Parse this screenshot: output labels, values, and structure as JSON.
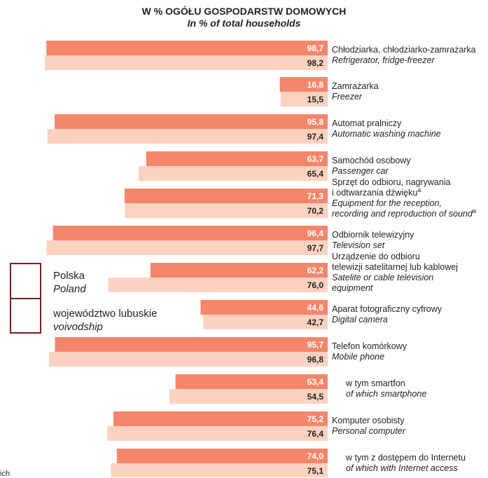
{
  "title": {
    "pl": "W % OGÓŁU GOSPODARSTW DOMOWYCH",
    "en": "In % of total households"
  },
  "legend": [
    {
      "pl": "Polska",
      "en": "Poland",
      "color": "#f4866a"
    },
    {
      "pl": "województwo lubuskie",
      "en": "voivodship",
      "color": "#fbd2c0"
    }
  ],
  "colors": {
    "poland": "#f4866a",
    "voivodship": "#fbd2c0",
    "poland_text": "#ffffff",
    "voivodship_text": "#231f20",
    "legend_border": "#7a1c1c"
  },
  "footnote": "ich",
  "chart_data": {
    "type": "bar",
    "orientation": "horizontal",
    "xlim": [
      0,
      100
    ],
    "series": [
      {
        "name": "Polska / Poland",
        "values": [
          98.7,
          16.8,
          95.8,
          63.7,
          71.3,
          96.4,
          62.2,
          44.6,
          95.7,
          53.4,
          75.2,
          74.0
        ]
      },
      {
        "name": "województwo lubuskie / voivodship",
        "values": [
          98.2,
          15.5,
          97.4,
          65.4,
          70.2,
          97.7,
          76.0,
          42.7,
          96.8,
          54.5,
          76.4,
          75.1
        ]
      }
    ],
    "value_labels": {
      "poland": [
        "98,7",
        "16,8",
        "95,8",
        "63,7",
        "71,3",
        "96,4",
        "62,2",
        "44,6",
        "95,7",
        "53,4",
        "75,2",
        "74,0"
      ],
      "voivodship": [
        "98,2",
        "15,5",
        "97,4",
        "65,4",
        "70,2",
        "97,7",
        "76,0",
        "42,7",
        "96,8",
        "54,5",
        "76,4",
        "75,1"
      ]
    },
    "categories": [
      {
        "lines": [
          {
            "t": "Chłodziarka, chłodziarko-zamrażarka",
            "it": false
          },
          {
            "t": "Refrigerator, fridge-freezer",
            "it": true
          }
        ]
      },
      {
        "lines": [
          {
            "t": "Zamrażarka",
            "it": false
          },
          {
            "t": "Freezer",
            "it": true
          }
        ]
      },
      {
        "lines": [
          {
            "t": "Automat pralniczy",
            "it": false
          },
          {
            "t": "Automatic washing machine",
            "it": true
          }
        ]
      },
      {
        "lines": [
          {
            "t": "Samochód osobowy",
            "it": false
          },
          {
            "t": "Passenger car",
            "it": true
          }
        ]
      },
      {
        "lines": [
          {
            "t": "Sprzęt do odbioru, nagrywania",
            "it": false
          },
          {
            "t": "i odtwarzania dźwięku",
            "it": false,
            "sup": "a"
          },
          {
            "t": "Equipment for the reception,",
            "it": true
          },
          {
            "t": "recording and reproduction of sound",
            "it": true,
            "sup": "a"
          }
        ]
      },
      {
        "lines": [
          {
            "t": "Odbiornik telewizyjny",
            "it": false
          },
          {
            "t": "Television set",
            "it": true
          }
        ]
      },
      {
        "lines": [
          {
            "t": "Urządzenie do odbioru",
            "it": false
          },
          {
            "t": "telewizji satelitarnej lub kablowej",
            "it": false
          },
          {
            "t": "Satelite or cable television",
            "it": true
          },
          {
            "t": "equipment",
            "it": true
          }
        ]
      },
      {
        "lines": [
          {
            "t": "Aparat fotograficzny cyfrowy",
            "it": false
          },
          {
            "t": "Digital camera",
            "it": true
          }
        ]
      },
      {
        "lines": [
          {
            "t": "Telefon komórkowy",
            "it": false
          },
          {
            "t": "Mobile phone",
            "it": true
          }
        ]
      },
      {
        "lines": [
          {
            "t": "w tym smartfon",
            "it": false
          },
          {
            "t": "of which smartphone",
            "it": true
          }
        ],
        "indent": true
      },
      {
        "lines": [
          {
            "t": "Komputer osobisty",
            "it": false
          },
          {
            "t": "Personal computer",
            "it": true
          }
        ]
      },
      {
        "lines": [
          {
            "t": "w tym z dostępem do Internetu",
            "it": false
          },
          {
            "t": "of which with Internet access",
            "it": true
          }
        ],
        "indent": true
      }
    ]
  }
}
